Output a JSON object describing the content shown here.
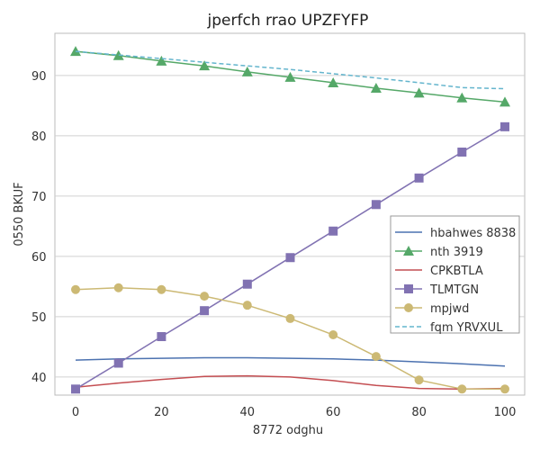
{
  "chart_data": {
    "type": "line",
    "title": "jperfch rrao UPZFYFP",
    "xlabel": "8772 odghu",
    "ylabel": "0550 BKUF",
    "xlim": [
      0,
      100
    ],
    "ylim": [
      37,
      97
    ],
    "xticks": [
      0,
      20,
      40,
      60,
      80,
      100
    ],
    "yticks": [
      40,
      50,
      60,
      70,
      80,
      90
    ],
    "grid": "y",
    "legend_position": "right",
    "x": [
      0,
      10,
      20,
      30,
      40,
      50,
      60,
      70,
      80,
      90,
      100
    ],
    "series": [
      {
        "name": "hbahwes 8838",
        "color": "#4c72b0",
        "marker": "none",
        "dash": "solid",
        "values": [
          42.8,
          43.0,
          43.1,
          43.2,
          43.2,
          43.1,
          43.0,
          42.8,
          42.5,
          42.2,
          41.8
        ]
      },
      {
        "name": "nth 3919",
        "color": "#55a868",
        "marker": "triangle",
        "dash": "solid",
        "values": [
          94.0,
          93.3,
          92.4,
          91.6,
          90.6,
          89.7,
          88.8,
          87.9,
          87.1,
          86.3,
          85.6
        ]
      },
      {
        "name": "CPKBTLA",
        "color": "#c44e52",
        "marker": "none",
        "dash": "solid",
        "values": [
          38.3,
          39.0,
          39.6,
          40.1,
          40.2,
          40.0,
          39.4,
          38.6,
          38.1,
          38.0,
          38.1
        ]
      },
      {
        "name": "TLMTGN",
        "color": "#8172b2",
        "marker": "square",
        "dash": "solid",
        "values": [
          38.0,
          42.3,
          46.7,
          51.0,
          55.4,
          59.8,
          64.2,
          68.6,
          73.0,
          77.3,
          81.5
        ]
      },
      {
        "name": "mpjwd",
        "color": "#ccb974",
        "marker": "circle",
        "dash": "solid",
        "values": [
          54.5,
          54.8,
          54.5,
          53.4,
          51.9,
          49.7,
          47.0,
          43.4,
          39.5,
          38.0,
          38.0
        ]
      },
      {
        "name": "fqm YRVXUL",
        "color": "#64b5cd",
        "marker": "none",
        "dash": "dashed",
        "values": [
          94.0,
          93.4,
          92.8,
          92.2,
          91.6,
          91.0,
          90.3,
          89.6,
          88.8,
          88.0,
          87.8
        ]
      }
    ]
  }
}
